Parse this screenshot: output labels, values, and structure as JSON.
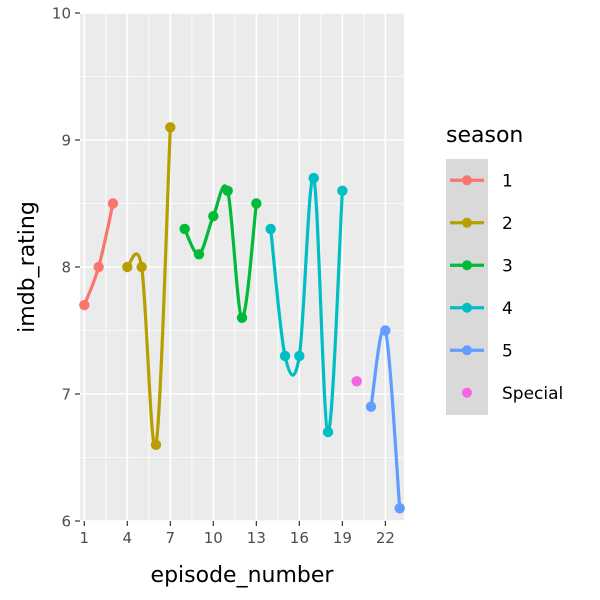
{
  "chart_data": {
    "type": "line",
    "xlabel": "episode_number",
    "ylabel": "imdb_rating",
    "xlim": [
      0.7,
      23.3
    ],
    "ylim": [
      6,
      10
    ],
    "x_ticks": [
      1,
      4,
      7,
      10,
      13,
      16,
      19,
      22
    ],
    "y_ticks": [
      6,
      7,
      8,
      9,
      10
    ],
    "grid": true,
    "panel_background": "#ebebeb",
    "grid_color": "#ffffff",
    "legend": {
      "title": "season",
      "placement": "right",
      "background": "#d9d9d9"
    },
    "series": [
      {
        "name": "1",
        "color": "#f8766d",
        "x": [
          1,
          2,
          3
        ],
        "y": [
          7.7,
          8.0,
          8.5
        ]
      },
      {
        "name": "2",
        "color": "#b79f00",
        "x": [
          4,
          5,
          6,
          7
        ],
        "y": [
          8.0,
          8.0,
          6.6,
          9.1
        ]
      },
      {
        "name": "3",
        "color": "#00ba38",
        "x": [
          8,
          9,
          10,
          11,
          12,
          13
        ],
        "y": [
          8.3,
          8.1,
          8.4,
          8.6,
          7.6,
          8.5
        ]
      },
      {
        "name": "4",
        "color": "#00bfc4",
        "x": [
          14,
          15,
          16,
          17,
          18,
          19
        ],
        "y": [
          8.3,
          7.3,
          7.3,
          8.7,
          6.7,
          8.6
        ]
      },
      {
        "name": "5",
        "color": "#619cff",
        "x": [
          21,
          22,
          23
        ],
        "y": [
          6.9,
          7.5,
          6.1
        ]
      },
      {
        "name": "Special",
        "color": "#f564e3",
        "x": [
          20
        ],
        "y": [
          7.1
        ]
      }
    ]
  }
}
